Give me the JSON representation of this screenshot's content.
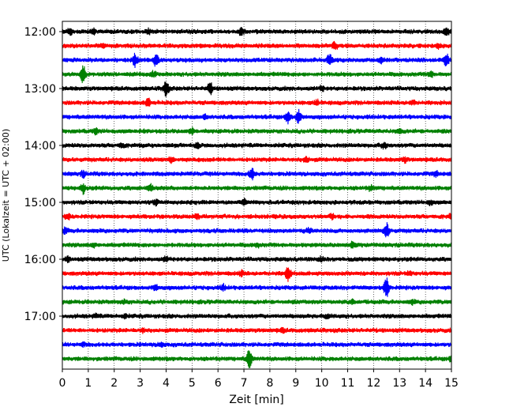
{
  "chart_data": {
    "type": "line",
    "title": "",
    "xlabel": "Zeit  [min]",
    "ylabel": "UTC (Lokalzeit = UTC + 02:00)",
    "xlim": [
      0,
      15
    ],
    "x_ticks": [
      "0",
      "1",
      "2",
      "3",
      "4",
      "5",
      "6",
      "7",
      "8",
      "9",
      "10",
      "11",
      "12",
      "13",
      "14",
      "15"
    ],
    "y_tick_labels": [
      "12:00",
      "13:00",
      "14:00",
      "15:00",
      "16:00",
      "17:00"
    ],
    "grid": "vertical dotted at each minute",
    "trace_colors": [
      "#000000",
      "#ff0000",
      "#0000ff",
      "#008000"
    ],
    "series": [
      {
        "start": "12:00",
        "events": [
          [
            0.3,
            0.7
          ],
          [
            1.2,
            0.6
          ],
          [
            3.3,
            0.6
          ],
          [
            6.9,
            0.9
          ],
          [
            14.8,
            1.0
          ]
        ]
      },
      {
        "start": "12:15",
        "events": [
          [
            1.6,
            0.5
          ],
          [
            10.5,
            1.0
          ],
          [
            14.5,
            0.5
          ]
        ]
      },
      {
        "start": "12:30",
        "events": [
          [
            2.8,
            1.5
          ],
          [
            3.6,
            1.4
          ],
          [
            10.3,
            1.3
          ],
          [
            12.3,
            0.7
          ],
          [
            14.8,
            1.5
          ]
        ]
      },
      {
        "start": "12:45",
        "events": [
          [
            0.8,
            2.2
          ],
          [
            3.5,
            0.5
          ],
          [
            14.2,
            0.6
          ]
        ]
      },
      {
        "start": "13:00",
        "events": [
          [
            4.0,
            2.0
          ],
          [
            5.7,
            1.3
          ],
          [
            10.0,
            0.5
          ]
        ]
      },
      {
        "start": "13:15",
        "events": [
          [
            3.3,
            0.9
          ],
          [
            9.8,
            0.6
          ],
          [
            13.5,
            0.5
          ]
        ]
      },
      {
        "start": "13:30",
        "events": [
          [
            8.7,
            1.4
          ],
          [
            9.1,
            1.6
          ],
          [
            5.5,
            0.4
          ]
        ]
      },
      {
        "start": "13:45",
        "events": [
          [
            1.3,
            0.6
          ],
          [
            5.0,
            0.6
          ],
          [
            13.0,
            0.5
          ]
        ]
      },
      {
        "start": "14:00",
        "events": [
          [
            2.3,
            0.5
          ],
          [
            5.2,
            0.5
          ],
          [
            12.4,
            0.6
          ]
        ]
      },
      {
        "start": "14:15",
        "events": [
          [
            4.2,
            0.6
          ],
          [
            9.4,
            0.6
          ],
          [
            13.2,
            0.5
          ]
        ]
      },
      {
        "start": "14:30",
        "events": [
          [
            0.8,
            0.6
          ],
          [
            7.3,
            1.4
          ],
          [
            14.4,
            0.5
          ]
        ]
      },
      {
        "start": "14:45",
        "events": [
          [
            0.8,
            1.1
          ],
          [
            3.4,
            0.7
          ],
          [
            11.9,
            0.5
          ]
        ]
      },
      {
        "start": "15:00",
        "events": [
          [
            3.6,
            0.5
          ],
          [
            7.0,
            0.5
          ],
          [
            14.2,
            0.5
          ]
        ]
      },
      {
        "start": "15:15",
        "events": [
          [
            0.2,
            0.5
          ],
          [
            5.2,
            0.5
          ],
          [
            10.4,
            0.5
          ],
          [
            15.0,
            0.6
          ]
        ]
      },
      {
        "start": "15:30",
        "events": [
          [
            0.1,
            0.6
          ],
          [
            12.5,
            1.8
          ],
          [
            9.5,
            0.5
          ]
        ]
      },
      {
        "start": "15:45",
        "events": [
          [
            1.2,
            0.4
          ],
          [
            7.5,
            0.4
          ],
          [
            11.2,
            0.5
          ]
        ]
      },
      {
        "start": "16:00",
        "events": [
          [
            0.2,
            0.5
          ],
          [
            4.0,
            0.5
          ],
          [
            10.0,
            0.5
          ]
        ]
      },
      {
        "start": "16:15",
        "events": [
          [
            8.7,
            1.8
          ],
          [
            6.9,
            0.5
          ],
          [
            13.4,
            0.4
          ]
        ]
      },
      {
        "start": "16:30",
        "events": [
          [
            3.6,
            0.6
          ],
          [
            6.2,
            0.6
          ],
          [
            12.5,
            2.2
          ]
        ]
      },
      {
        "start": "16:45",
        "events": [
          [
            2.4,
            0.4
          ],
          [
            11.2,
            0.5
          ],
          [
            13.5,
            0.4
          ]
        ]
      },
      {
        "start": "17:00",
        "events": [
          [
            1.3,
            0.4
          ],
          [
            2.4,
            0.4
          ],
          [
            10.2,
            0.4
          ]
        ]
      },
      {
        "start": "17:15",
        "events": [
          [
            3.1,
            0.4
          ],
          [
            8.5,
            0.4
          ]
        ]
      },
      {
        "start": "17:30",
        "events": [
          [
            0.8,
            0.4
          ],
          [
            3.8,
            0.5
          ]
        ]
      },
      {
        "start": "17:45",
        "events": [
          [
            7.2,
            2.4
          ],
          [
            15.0,
            0.6
          ]
        ]
      }
    ]
  }
}
